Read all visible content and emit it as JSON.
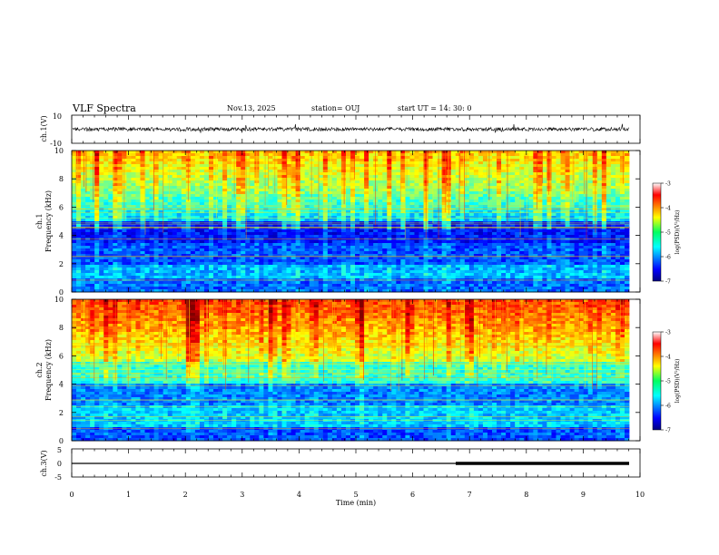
{
  "header": {
    "title": "VLF Spectra",
    "date": "Nov.13, 2025",
    "station": "station= OUJ",
    "start": "start  UT =   14: 30: 0"
  },
  "chart_data": [
    {
      "type": "line",
      "name": "ch1-waveform",
      "ylabel": "ch.1(V)",
      "ylim": [
        -10,
        10
      ],
      "yticks": [
        "10",
        "-10"
      ],
      "xlim": [
        0,
        10
      ]
    },
    {
      "type": "heatmap",
      "name": "ch1-spectrogram",
      "ylabel_top": "ch.1",
      "ylabel": "Frequency (kHz)",
      "ylim": [
        0,
        10
      ],
      "yticks": [
        "0",
        "2",
        "4",
        "6",
        "8",
        "10"
      ],
      "xlim": [
        0,
        10
      ],
      "colorbar": {
        "ticks": [
          "-3",
          "-4",
          "-5",
          "-6",
          "-7"
        ],
        "label": "log(PSD)(V²/Hz)"
      }
    },
    {
      "type": "heatmap",
      "name": "ch2-spectrogram",
      "ylabel_top": "ch.2",
      "ylabel": "Frequency (kHz)",
      "ylim": [
        0,
        10
      ],
      "yticks": [
        "0",
        "2",
        "4",
        "6",
        "8",
        "10"
      ],
      "xlim": [
        0,
        10
      ],
      "colorbar": {
        "ticks": [
          "-3",
          "-4",
          "-5",
          "-6",
          "-7"
        ],
        "label": "log(PSD)(V²/Hz)"
      }
    },
    {
      "type": "line",
      "name": "ch3-trace",
      "ylabel": "ch.3(V)",
      "ylim": [
        -5,
        5
      ],
      "yticks": [
        "5",
        "0",
        "-5"
      ],
      "xlim": [
        0,
        10
      ],
      "segments": [
        {
          "x": [
            0,
            6.8
          ],
          "y": 0
        },
        {
          "x": [
            6.8,
            9.8
          ],
          "y": 0,
          "thick": true
        }
      ]
    }
  ],
  "xaxis": {
    "label": "Time (min)",
    "ticks": [
      "0",
      "1",
      "2",
      "3",
      "4",
      "5",
      "6",
      "7",
      "8",
      "9",
      "10"
    ]
  }
}
